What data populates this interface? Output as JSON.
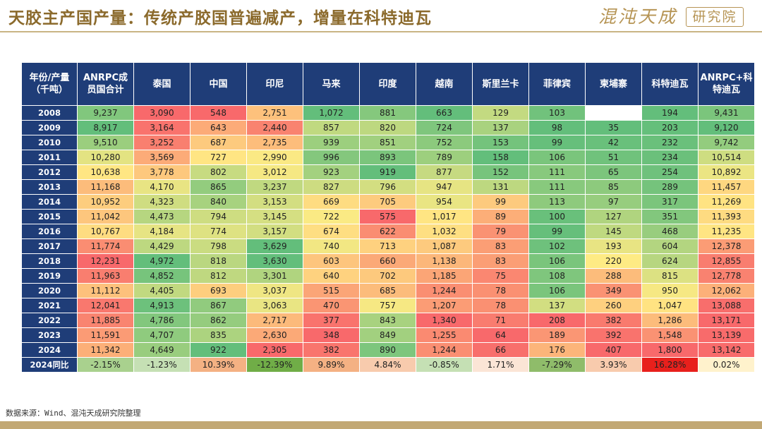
{
  "header": {
    "title": "天胶主产国产量：传统产胶国普遍减产，增量在科特迪瓦",
    "brand_name": "混沌天成",
    "brand_box": "研究院"
  },
  "source": "数据来源：Wind、混沌天成研究院整理",
  "colors": {
    "header_bg": "#1f3d78",
    "scale_low": "#f8696b",
    "scale_mid": "#ffeb84",
    "scale_high": "#63be7b",
    "footer": "#c2a874"
  },
  "chart_data": {
    "type": "table",
    "title": "",
    "columns": [
      "年份/产量（千吨）",
      "ANRPC成员国合计",
      "泰国",
      "中国",
      "印尼",
      "马来",
      "印度",
      "越南",
      "斯里兰卡",
      "菲律宾",
      "柬埔寨",
      "科特迪瓦",
      "ANRPC+科特迪瓦"
    ],
    "rows": [
      {
        "year": "2008",
        "values": [
          "9,237",
          "3,090",
          "548",
          "2,751",
          "1,072",
          "881",
          "663",
          "129",
          "103",
          "",
          "194",
          "9,431"
        ]
      },
      {
        "year": "2009",
        "values": [
          "8,917",
          "3,164",
          "643",
          "2,440",
          "857",
          "820",
          "724",
          "137",
          "98",
          "35",
          "203",
          "9,120"
        ]
      },
      {
        "year": "2010",
        "values": [
          "9,510",
          "3,252",
          "687",
          "2,735",
          "939",
          "851",
          "752",
          "153",
          "99",
          "42",
          "232",
          "9,742"
        ]
      },
      {
        "year": "2011",
        "values": [
          "10,280",
          "3,569",
          "727",
          "2,990",
          "996",
          "893",
          "789",
          "158",
          "106",
          "51",
          "234",
          "10,514"
        ]
      },
      {
        "year": "2012",
        "values": [
          "10,638",
          "3,778",
          "802",
          "3,012",
          "923",
          "919",
          "877",
          "152",
          "111",
          "65",
          "254",
          "10,892"
        ]
      },
      {
        "year": "2013",
        "values": [
          "11,168",
          "4,170",
          "865",
          "3,237",
          "827",
          "796",
          "947",
          "131",
          "111",
          "85",
          "289",
          "11,457"
        ]
      },
      {
        "year": "2014",
        "values": [
          "10,952",
          "4,323",
          "840",
          "3,153",
          "669",
          "705",
          "954",
          "99",
          "113",
          "97",
          "317",
          "11,269"
        ]
      },
      {
        "year": "2015",
        "values": [
          "11,042",
          "4,473",
          "794",
          "3,145",
          "722",
          "575",
          "1,017",
          "89",
          "100",
          "127",
          "351",
          "11,393"
        ]
      },
      {
        "year": "2016",
        "values": [
          "10,767",
          "4,184",
          "774",
          "3,157",
          "674",
          "622",
          "1,032",
          "79",
          "99",
          "145",
          "468",
          "11,235"
        ]
      },
      {
        "year": "2017",
        "values": [
          "11,774",
          "4,429",
          "798",
          "3,629",
          "740",
          "713",
          "1,087",
          "83",
          "102",
          "193",
          "604",
          "12,378"
        ]
      },
      {
        "year": "2018",
        "values": [
          "12,231",
          "4,972",
          "818",
          "3,630",
          "603",
          "660",
          "1,138",
          "83",
          "106",
          "220",
          "624",
          "12,855"
        ]
      },
      {
        "year": "2019",
        "values": [
          "11,963",
          "4,852",
          "812",
          "3,301",
          "640",
          "702",
          "1,185",
          "75",
          "108",
          "288",
          "815",
          "12,778"
        ]
      },
      {
        "year": "2020",
        "values": [
          "11,112",
          "4,405",
          "693",
          "3,037",
          "515",
          "685",
          "1,244",
          "78",
          "106",
          "349",
          "950",
          "12,062"
        ]
      },
      {
        "year": "2021",
        "values": [
          "12,041",
          "4,913",
          "867",
          "3,063",
          "470",
          "757",
          "1,207",
          "78",
          "137",
          "260",
          "1,047",
          "13,088"
        ]
      },
      {
        "year": "2022",
        "values": [
          "11,885",
          "4,786",
          "862",
          "2,717",
          "377",
          "843",
          "1,340",
          "71",
          "208",
          "382",
          "1,286",
          "13,171"
        ]
      },
      {
        "year": "2023",
        "values": [
          "11,591",
          "4,707",
          "835",
          "2,630",
          "348",
          "849",
          "1,255",
          "64",
          "189",
          "392",
          "1,548",
          "13,139"
        ]
      },
      {
        "year": "2024",
        "values": [
          "11,342",
          "4,649",
          "922",
          "2,305",
          "382",
          "890",
          "1,244",
          "66",
          "176",
          "407",
          "1,800",
          "13,142"
        ]
      }
    ],
    "yoy_row": {
      "label": "2024同比",
      "values": [
        "-2.15%",
        "-1.23%",
        "10.39%",
        "-12.39%",
        "9.89%",
        "4.84%",
        "-0.85%",
        "1.71%",
        "-7.29%",
        "3.93%",
        "16.28%",
        "0.02%"
      ],
      "colors": [
        "#a9d18e",
        "#c5e0b4",
        "#f4b183",
        "#70ad47",
        "#f4b183",
        "#f8cbad",
        "#c5e0b4",
        "#fbe5d6",
        "#8fbc6a",
        "#f8cbad",
        "#e8201c",
        "#fff2cc"
      ]
    },
    "color_scale": {
      "low": "#f8696b",
      "mid": "#ffeb84",
      "high": "#63be7b",
      "column_direction": [
        "high-low",
        "low-high",
        "low-high",
        "low-high",
        "low-high",
        "low-high",
        "high-low",
        "low-high",
        "high-low",
        "high-low",
        "high-low",
        "high-low"
      ]
    }
  }
}
